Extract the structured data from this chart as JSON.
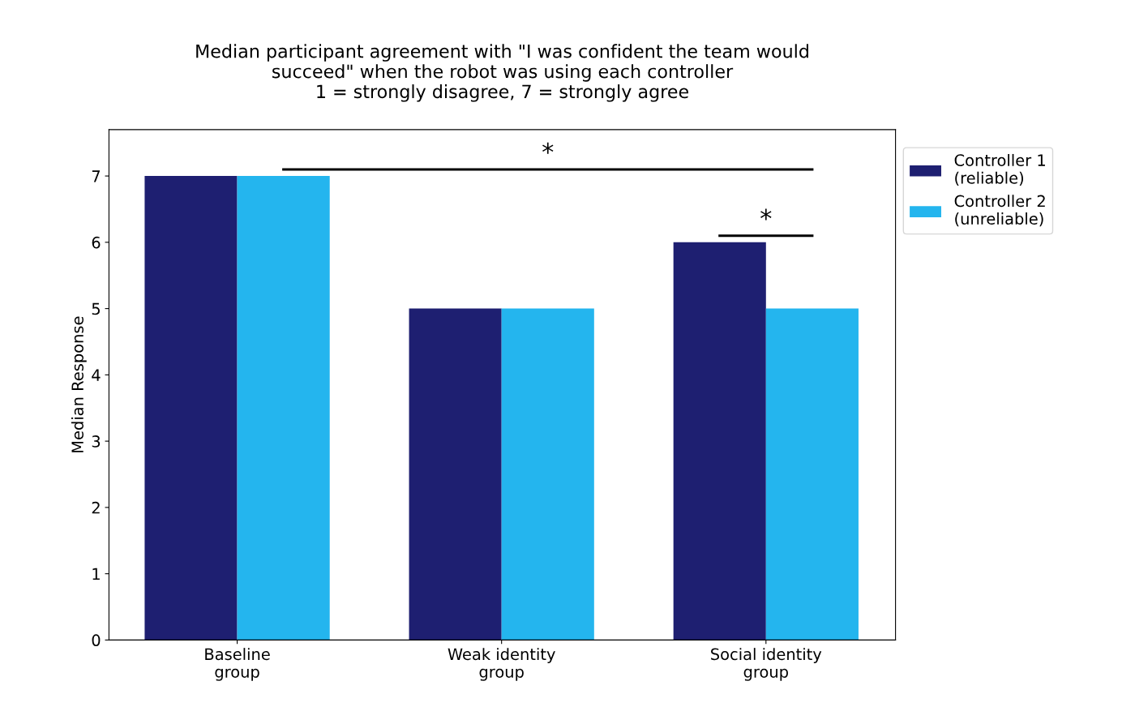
{
  "chart_data": {
    "type": "bar",
    "title": "Median participant agreement with \"I was confident the team would\nsucceed\" when the robot was using each controller\n1 = strongly disagree, 7 = strongly agree",
    "ylabel": "Median Response",
    "categories": [
      "Baseline\ngroup",
      "Weak identity\ngroup",
      "Social identity\ngroup"
    ],
    "series": [
      {
        "name": "Controller 1\n(reliable)",
        "color": "#1e1f71",
        "values": [
          7,
          5,
          6
        ]
      },
      {
        "name": "Controller 2\n(unreliable)",
        "color": "#24b5ee",
        "values": [
          7,
          5,
          5
        ]
      }
    ],
    "ylim": [
      0,
      7.7
    ],
    "yticks": [
      0,
      1,
      2,
      3,
      4,
      5,
      6,
      7
    ],
    "grid": false,
    "legend": "top right",
    "annotations": [
      "*",
      "*"
    ]
  }
}
